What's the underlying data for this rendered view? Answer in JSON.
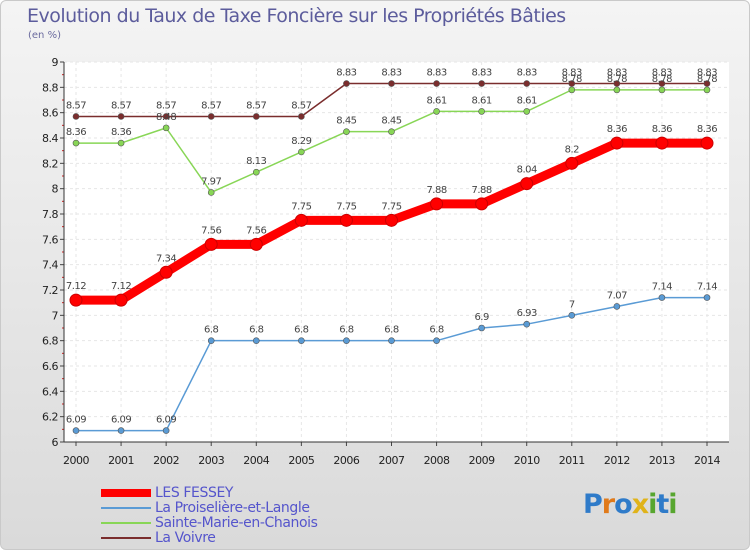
{
  "chart_data": {
    "type": "line",
    "title": "Evolution du Taux de Taxe Foncière sur les Propriétés Bâties",
    "subtitle": "(en %)",
    "x": [
      2000,
      2001,
      2002,
      2003,
      2004,
      2005,
      2006,
      2007,
      2008,
      2009,
      2010,
      2011,
      2012,
      2013,
      2014
    ],
    "x_tick_labels": [
      "2000",
      "2001",
      "2002",
      "2003",
      "2004",
      "2005",
      "2006",
      "2007",
      "2008",
      "2009",
      "2010",
      "2011",
      "2012",
      "2013",
      "2014"
    ],
    "ylim": [
      6,
      9
    ],
    "y_ticks": [
      6,
      6.2,
      6.4,
      6.6,
      6.8,
      7,
      7.2,
      7.4,
      7.6,
      7.8,
      8,
      8.2,
      8.4,
      8.6,
      8.8,
      9
    ],
    "y_tick_labels": [
      "6",
      "6.2",
      "6.4",
      "6.6",
      "6.8",
      "7",
      "7.2",
      "7.4",
      "7.6",
      "7.8",
      "8",
      "8.2",
      "8.4",
      "8.6",
      "8.8",
      "9"
    ],
    "grid": true,
    "legend_position": "bottom-left",
    "series": [
      {
        "name": "LES FESSEY",
        "color": "#ff0000",
        "values": [
          7.12,
          7.12,
          7.34,
          7.56,
          7.56,
          7.75,
          7.75,
          7.75,
          7.88,
          7.88,
          8.04,
          8.2,
          8.36,
          8.36,
          8.36
        ],
        "labels": [
          "7.12",
          "7.12",
          "7.34",
          "7.56",
          "7.56",
          "7.75",
          "7.75",
          "7.75",
          "7.88",
          "7.88",
          "8.04",
          "8.2",
          "8.36",
          "8.36",
          "8.36"
        ]
      },
      {
        "name": "La Proiselière-et-Langle",
        "color": "#5a9bd5",
        "values": [
          6.09,
          6.09,
          6.09,
          6.8,
          6.8,
          6.8,
          6.8,
          6.8,
          6.8,
          6.9,
          6.93,
          7,
          7.07,
          7.14,
          7.14
        ],
        "labels": [
          "6.09",
          "6.09",
          "6.09",
          "6.8",
          "6.8",
          "6.8",
          "6.8",
          "6.8",
          "6.8",
          "6.9",
          "6.93",
          "7",
          "7.07",
          "7.14",
          "7.14"
        ]
      },
      {
        "name": "Sainte-Marie-en-Chanois",
        "color": "#88d656",
        "values": [
          8.36,
          8.36,
          8.48,
          7.97,
          8.13,
          8.29,
          8.45,
          8.45,
          8.61,
          8.61,
          8.61,
          8.78,
          8.78,
          8.78,
          8.78
        ],
        "labels": [
          "8.36",
          "8.36",
          "8.48",
          "7.97",
          "8.13",
          "8.29",
          "8.45",
          "8.45",
          "8.61",
          "8.61",
          "8.61",
          "8.78",
          "8.78",
          "8.78",
          "8.78"
        ]
      },
      {
        "name": "La Voivre",
        "color": "#7a2d2d",
        "values": [
          8.57,
          8.57,
          8.57,
          8.57,
          8.57,
          8.57,
          8.83,
          8.83,
          8.83,
          8.83,
          8.83,
          8.83,
          8.83,
          8.83,
          8.83
        ],
        "labels": [
          "8.57",
          "8.57",
          "8.57",
          "8.57",
          "8.57",
          "8.57",
          "8.83",
          "8.83",
          "8.83",
          "8.83",
          "8.83",
          "8.83",
          "8.83",
          "8.83",
          "8.83"
        ]
      }
    ]
  },
  "logo": {
    "letters": [
      "P",
      "r",
      "o",
      "x",
      "i",
      "t",
      "i"
    ]
  }
}
